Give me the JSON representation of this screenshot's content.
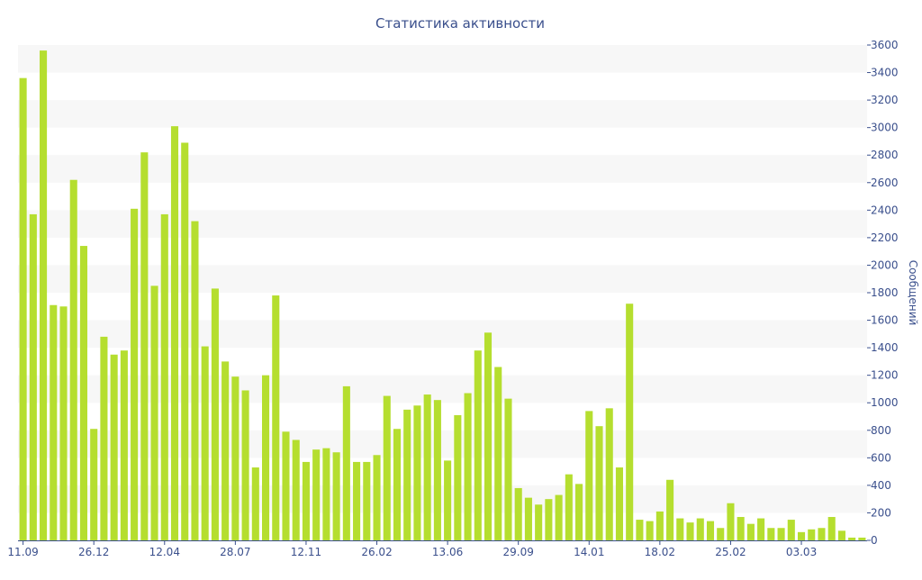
{
  "chart_data": {
    "type": "bar",
    "title": "Статистика активности",
    "ylabel": "Сообщений",
    "ylim": [
      0,
      3600
    ],
    "y_ticks": [
      0,
      200,
      400,
      600,
      800,
      1000,
      1200,
      1400,
      1600,
      1800,
      2000,
      2200,
      2400,
      2600,
      2800,
      3000,
      3200,
      3400,
      3600
    ],
    "y_axis_position": "right",
    "grid": "alternating horizontal bands",
    "x_tick_labels": [
      {
        "label": "11.09",
        "index": 0
      },
      {
        "label": "26.12",
        "index": 7
      },
      {
        "label": "12.04",
        "index": 14
      },
      {
        "label": "28.07",
        "index": 21
      },
      {
        "label": "12.11",
        "index": 28
      },
      {
        "label": "26.02",
        "index": 35
      },
      {
        "label": "13.06",
        "index": 42
      },
      {
        "label": "29.09",
        "index": 49
      },
      {
        "label": "14.01",
        "index": 56
      },
      {
        "label": "18.02",
        "index": 63
      },
      {
        "label": "25.02",
        "index": 70
      },
      {
        "label": "03.03",
        "index": 77
      }
    ],
    "values": [
      3360,
      2370,
      3560,
      1710,
      1700,
      2620,
      2140,
      810,
      1480,
      1350,
      1380,
      2410,
      2820,
      1850,
      2370,
      3010,
      2890,
      2320,
      1410,
      1830,
      1300,
      1190,
      1090,
      530,
      1200,
      1780,
      790,
      730,
      570,
      660,
      670,
      640,
      1120,
      570,
      570,
      620,
      1050,
      810,
      950,
      980,
      1060,
      1020,
      580,
      910,
      1070,
      1380,
      1510,
      1260,
      1030,
      380,
      310,
      260,
      300,
      330,
      480,
      410,
      940,
      830,
      960,
      530,
      1720,
      150,
      140,
      210,
      440,
      160,
      130,
      160,
      140,
      90,
      270,
      170,
      120,
      160,
      90,
      90,
      150,
      60,
      80,
      90,
      170,
      70,
      20,
      20
    ],
    "colors": {
      "bar": "#b5de2f",
      "text": "#3a4f8c",
      "band": "#f7f7f7",
      "axis": "#3a4f8c"
    }
  }
}
